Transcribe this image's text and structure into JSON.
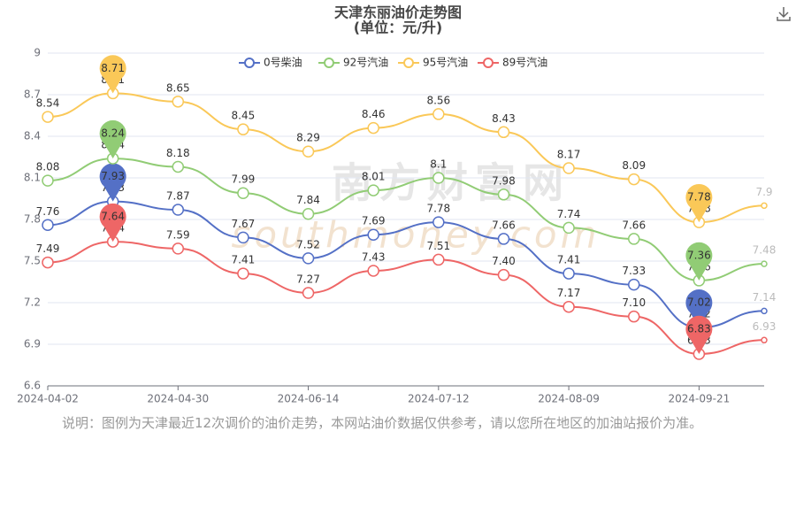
{
  "chart_data": {
    "type": "line",
    "title": "天津东丽油价走势图",
    "subtitle": "(单位：元/升)",
    "watermark": [
      "南方财富网",
      "southmoney.com"
    ],
    "categories": [
      "2024-04-02",
      null,
      "2024-04-30",
      null,
      "2024-06-14",
      null,
      "2024-07-12",
      null,
      "2024-08-09",
      null,
      "2024-09-21",
      null
    ],
    "ylim": [
      6.6,
      9
    ],
    "yticks": [
      6.6,
      6.9,
      7.2,
      7.5,
      7.8,
      8.1,
      8.4,
      8.7,
      9
    ],
    "grid": true,
    "legend": "top",
    "series": [
      {
        "name": "0号柴油",
        "color": "#5470c6",
        "values": [
          7.76,
          7.93,
          7.87,
          7.67,
          7.52,
          7.69,
          7.78,
          7.66,
          7.41,
          7.33,
          7.02,
          7.14
        ]
      },
      {
        "name": "92号汽油",
        "color": "#91cc75",
        "values": [
          8.08,
          8.24,
          8.18,
          7.99,
          7.84,
          8.01,
          8.1,
          7.98,
          7.74,
          7.66,
          7.36,
          7.48
        ]
      },
      {
        "name": "95号汽油",
        "color": "#fac858",
        "values": [
          8.54,
          8.71,
          8.65,
          8.45,
          8.29,
          8.46,
          8.56,
          8.43,
          8.17,
          8.09,
          7.78,
          7.9
        ]
      },
      {
        "name": "89号汽油",
        "color": "#ee6666",
        "values": [
          7.49,
          7.64,
          7.59,
          7.41,
          7.27,
          7.43,
          7.51,
          7.4,
          7.17,
          7.1,
          6.83,
          6.93
        ],
        "value_labels": [
          "7.49",
          "7.64",
          "7.59",
          "7.41",
          "7.27",
          "7.43",
          "7.51",
          "7.40",
          "7.17",
          "7.10",
          "6.83",
          "6.93"
        ]
      }
    ],
    "note": "说明：图例为天津最近12次调价的油价走势，本网站油价数据仅供参考，请以您所在地区的加油站报价为准。"
  }
}
